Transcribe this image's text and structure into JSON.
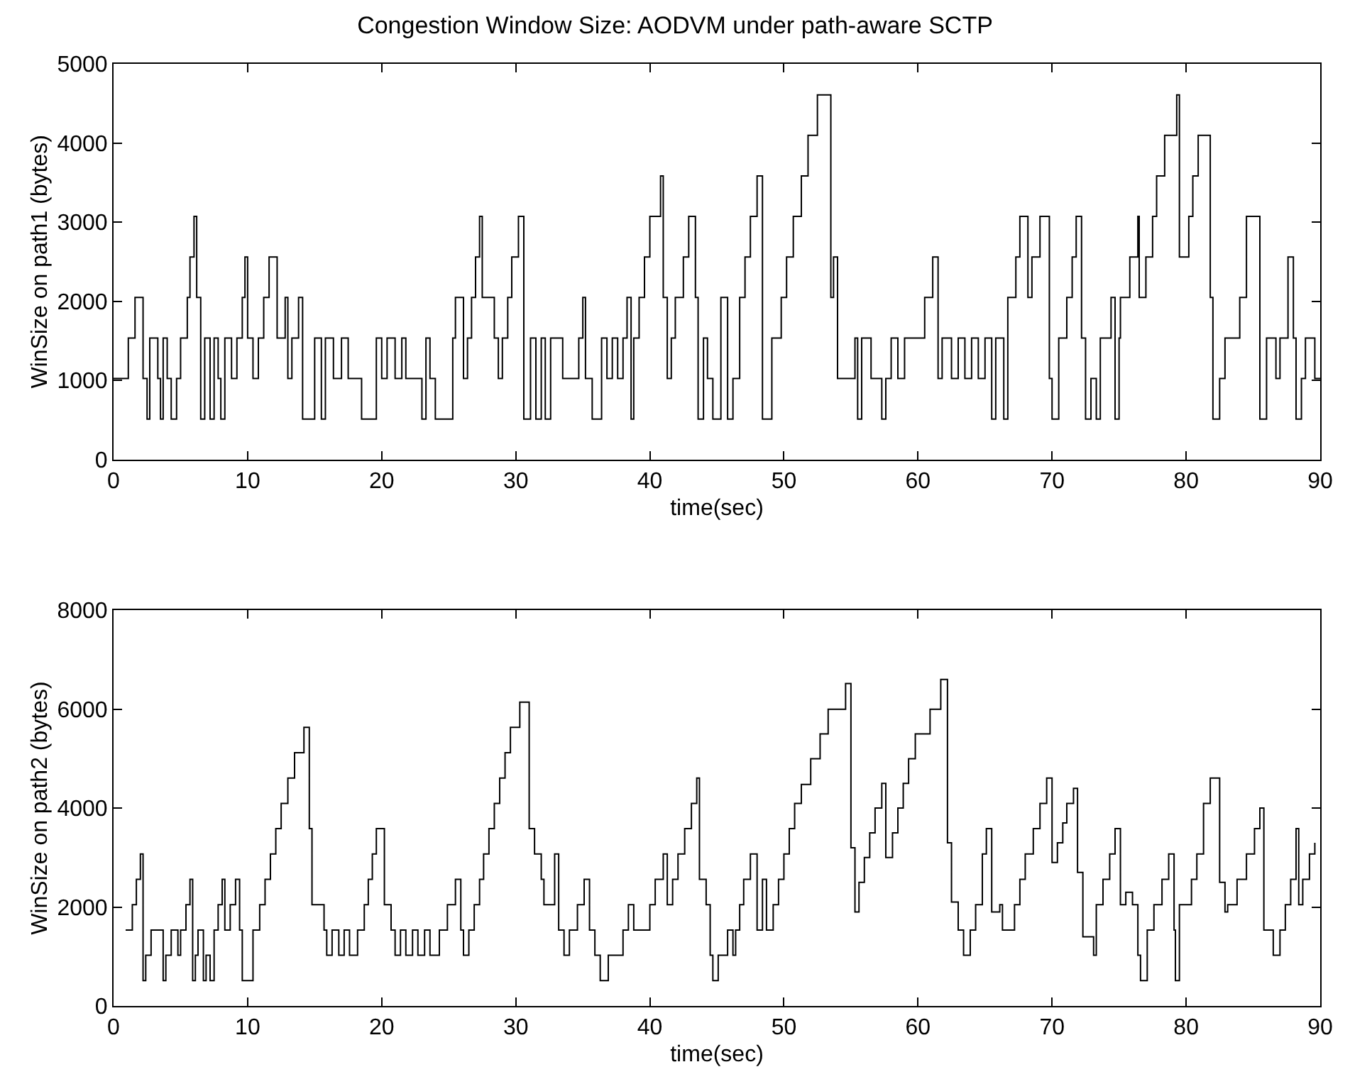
{
  "chart_data": [
    {
      "type": "step",
      "title": "Congestion Window Size: AODVM under path-aware SCTP",
      "xlabel": "time(sec)",
      "ylabel": "WinSize on path1 (bytes)",
      "xlim": [
        0,
        90
      ],
      "xticks": [
        0,
        10,
        20,
        30,
        40,
        50,
        60,
        70,
        80,
        90
      ],
      "ylim": [
        0,
        5000
      ],
      "yticks": [
        0,
        1000,
        2000,
        3000,
        4000,
        5000
      ],
      "series": [
        {
          "color": "#000000",
          "x": [
            0,
            1.1,
            1.6,
            2.2,
            2.5,
            2.7,
            3.3,
            3.5,
            3.7,
            4,
            4.3,
            4.7,
            5,
            5.5,
            5.7,
            6,
            6.2,
            6.5,
            6.8,
            7.2,
            7.5,
            7.8,
            8,
            8.3,
            8.8,
            9.2,
            9.6,
            9.8,
            10,
            10.4,
            10.8,
            11.2,
            11.6,
            12.2,
            12.8,
            13,
            13.3,
            13.8,
            14.1,
            15,
            15.5,
            15.8,
            16.4,
            17,
            17.5,
            18.5,
            19.6,
            20,
            20.4,
            21,
            21.5,
            21.8,
            23,
            23.3,
            23.6,
            24,
            25.3,
            25.5,
            26.1,
            26.4,
            26.7,
            27,
            27.3,
            27.5,
            28.4,
            28.7,
            29,
            29.4,
            29.7,
            30.2,
            30.6,
            31.1,
            31.5,
            31.9,
            32.2,
            32.6,
            33.5,
            34.7,
            35,
            35.2,
            35.7,
            36.4,
            36.8,
            37.2,
            37.6,
            38,
            38.3,
            38.6,
            38.8,
            39.2,
            39.6,
            40,
            40.8,
            41,
            41.3,
            41.6,
            41.9,
            42.5,
            42.9,
            43.4,
            43.6,
            44,
            44.3,
            44.7,
            45.3,
            45.8,
            46.2,
            46.7,
            47.1,
            47.5,
            48,
            48.4,
            49.1,
            49.8,
            50.2,
            50.7,
            51.3,
            51.8,
            52.5,
            53.5,
            53.7,
            54,
            55.3,
            55.5,
            55.8,
            56.5,
            57.3,
            57.6,
            58,
            58.5,
            59,
            60.5,
            61.1,
            61.5,
            61.8,
            62.5,
            63,
            63.5,
            64,
            64.5,
            65,
            65.5,
            65.8,
            66.4,
            66.7,
            67.3,
            67.6,
            68.2,
            68.5,
            69.1,
            69.8,
            70,
            70.5,
            71.1,
            71.5,
            71.8,
            72.2,
            72.5,
            72.9,
            73.3,
            73.6,
            74.4,
            74.7,
            75,
            75.1,
            75.8,
            76.4,
            76.5,
            77,
            77.5,
            77.8,
            78.4,
            79.3,
            79.5,
            80.2,
            80.5,
            80.9,
            81.8,
            82,
            82.5,
            82.9,
            84,
            84.5,
            85.5,
            86,
            86.7,
            87,
            87.6,
            88,
            88.2,
            88.6,
            88.9,
            89.6,
            90
          ],
          "values": [
            1024,
            1536,
            2048,
            1024,
            512,
            1536,
            1024,
            512,
            1536,
            1024,
            512,
            1024,
            1536,
            2048,
            2560,
            3072,
            2048,
            512,
            1536,
            512,
            1536,
            1024,
            512,
            1536,
            1024,
            1536,
            2048,
            2560,
            1536,
            1024,
            1536,
            2048,
            2560,
            1536,
            2048,
            1024,
            1536,
            2048,
            512,
            1536,
            512,
            1536,
            1024,
            1536,
            1024,
            512,
            1536,
            1024,
            1536,
            1024,
            1536,
            1024,
            512,
            1536,
            1024,
            512,
            1536,
            2048,
            1024,
            1536,
            2048,
            2560,
            3072,
            2048,
            1536,
            1024,
            1536,
            2048,
            2560,
            3072,
            512,
            1536,
            512,
            1536,
            512,
            1536,
            1024,
            1536,
            2048,
            1024,
            512,
            1536,
            1024,
            1536,
            1024,
            1536,
            2048,
            512,
            1536,
            2048,
            2560,
            3072,
            3584,
            2048,
            1024,
            1536,
            2048,
            2560,
            3072,
            2048,
            512,
            1536,
            1024,
            512,
            2048,
            512,
            1024,
            2048,
            2560,
            3072,
            3584,
            512,
            1536,
            2048,
            2560,
            3072,
            3584,
            4096,
            4608,
            2048,
            2560,
            1024,
            1536,
            512,
            1536,
            1024,
            512,
            1024,
            1536,
            1024,
            1536,
            2048,
            2560,
            1024,
            1536,
            1024,
            1536,
            1024,
            1536,
            1024,
            1536,
            512,
            1536,
            512,
            2048,
            2560,
            3072,
            2048,
            2560,
            3072,
            1024,
            512,
            1536,
            2048,
            2560,
            3072,
            1536,
            512,
            1024,
            512,
            1536,
            2048,
            512,
            1536,
            2048,
            2560,
            3072,
            2048,
            2560,
            3072,
            3584,
            4096,
            4608,
            2560,
            3072,
            3584,
            4096,
            2048,
            512,
            1024,
            1536,
            2048,
            3072,
            512,
            1536,
            1024,
            1536,
            2560,
            1536,
            512,
            1024,
            1536,
            1024,
            1024
          ]
        }
      ]
    },
    {
      "type": "step",
      "xlabel": "time(sec)",
      "ylabel": "WinSize on path2 (bytes)",
      "xlim": [
        0,
        90
      ],
      "xticks": [
        0,
        10,
        20,
        30,
        40,
        50,
        60,
        70,
        80,
        90
      ],
      "ylim": [
        0,
        8000
      ],
      "yticks": [
        0,
        2000,
        4000,
        6000,
        8000
      ],
      "series": [
        {
          "color": "#000000",
          "x": [
            0.9,
            1.4,
            1.7,
            2,
            2.2,
            2.4,
            2.8,
            3.7,
            3.9,
            4.3,
            4.8,
            5,
            5.4,
            5.7,
            5.9,
            6.1,
            6.3,
            6.7,
            6.9,
            7.2,
            7.5,
            7.8,
            8.1,
            8.3,
            8.7,
            9.1,
            9.4,
            9.6,
            10.4,
            10.9,
            11.3,
            11.7,
            12.1,
            12.5,
            13,
            13.5,
            14.2,
            14.6,
            14.8,
            15.7,
            15.9,
            16.3,
            16.8,
            17.2,
            17.6,
            18.2,
            18.7,
            19,
            19.3,
            19.6,
            20.2,
            20.7,
            21,
            21.4,
            21.8,
            22.3,
            22.7,
            23.2,
            23.6,
            24.3,
            24.9,
            25.5,
            25.9,
            26.1,
            26.5,
            26.9,
            27.3,
            27.6,
            28,
            28.4,
            28.8,
            29.2,
            29.6,
            30.3,
            31,
            31.4,
            31.9,
            32.1,
            32.9,
            33.2,
            33.6,
            34,
            34.6,
            35.1,
            35.5,
            35.9,
            36.3,
            36.9,
            38,
            38.4,
            38.8,
            39.4,
            40,
            40.4,
            41,
            41.3,
            41.7,
            42.1,
            42.6,
            43.1,
            43.5,
            43.7,
            44.2,
            44.5,
            44.7,
            45.1,
            45.8,
            46.2,
            46.4,
            46.7,
            47,
            47.5,
            48,
            48.4,
            48.7,
            49.2,
            49.6,
            50,
            50.4,
            50.8,
            51.3,
            52,
            52.7,
            53.3,
            54.6,
            55,
            55.3,
            55.6,
            56,
            56.4,
            56.8,
            57.3,
            57.6,
            58.1,
            58.5,
            58.9,
            59.3,
            59.8,
            60.9,
            61.7,
            62.2,
            62.5,
            63,
            63.4,
            63.9,
            64.3,
            64.8,
            65.1,
            65.5,
            66.1,
            66.3,
            67.2,
            67.6,
            68,
            68.6,
            69.1,
            69.6,
            70,
            70.4,
            70.8,
            71.1,
            71.6,
            71.9,
            72.3,
            73.1,
            73.3,
            73.8,
            74.3,
            74.7,
            75.1,
            75.5,
            76,
            76.4,
            76.6,
            77.1,
            77.6,
            78.2,
            78.7,
            79.1,
            79.2,
            79.5,
            80.4,
            80.8,
            81.3,
            81.8,
            82.5,
            82.9,
            83.1,
            83.8,
            84.5,
            85.1,
            85.5,
            85.8,
            86.5,
            87,
            87.4,
            87.8,
            88.2,
            88.4,
            88.7,
            89.2,
            89.6
          ],
          "values": [
            1536,
            2048,
            2560,
            3072,
            512,
            1024,
            1536,
            512,
            1024,
            1536,
            1024,
            1536,
            2048,
            2560,
            512,
            1024,
            1536,
            512,
            1024,
            512,
            1536,
            2048,
            2560,
            1536,
            2048,
            2560,
            1536,
            512,
            1536,
            2048,
            2560,
            3072,
            3584,
            4096,
            4608,
            5120,
            5632,
            3584,
            2048,
            1536,
            1024,
            1536,
            1024,
            1536,
            1024,
            1536,
            2048,
            2560,
            3072,
            3584,
            2048,
            1536,
            1024,
            1536,
            1024,
            1536,
            1024,
            1536,
            1024,
            1536,
            2048,
            2560,
            1536,
            1024,
            1536,
            2048,
            2560,
            3072,
            3584,
            4096,
            4608,
            5120,
            5632,
            6144,
            3584,
            3072,
            2560,
            2048,
            3072,
            1536,
            1024,
            1536,
            2048,
            2560,
            1536,
            1024,
            512,
            1024,
            1536,
            2048,
            1536,
            1536,
            2048,
            2560,
            3072,
            2048,
            2560,
            3072,
            3584,
            4096,
            4608,
            2560,
            2048,
            1024,
            512,
            1024,
            1536,
            1024,
            1536,
            2048,
            2560,
            3072,
            1536,
            2560,
            1536,
            2048,
            2560,
            3072,
            3584,
            4096,
            4480,
            5000,
            5500,
            6000,
            6520,
            3200,
            1900,
            2500,
            3000,
            3500,
            4000,
            4500,
            3000,
            3500,
            4000,
            4500,
            5000,
            5500,
            6000,
            6600,
            3300,
            2100,
            1536,
            1024,
            1536,
            2048,
            3072,
            3584,
            1900,
            2048,
            1536,
            2048,
            2560,
            3072,
            3584,
            4096,
            4608,
            2900,
            3300,
            3700,
            4096,
            4400,
            2700,
            1400,
            1024,
            2048,
            2560,
            3072,
            3584,
            2048,
            2300,
            2048,
            1024,
            512,
            1536,
            2048,
            2560,
            3072,
            1536,
            512,
            2048,
            2560,
            3072,
            4096,
            4608,
            2500,
            1900,
            2048,
            2560,
            3072,
            3584,
            4000,
            1536,
            1024,
            1536,
            2048,
            2560,
            3584,
            2048,
            2560,
            3072,
            3300
          ]
        }
      ]
    }
  ]
}
